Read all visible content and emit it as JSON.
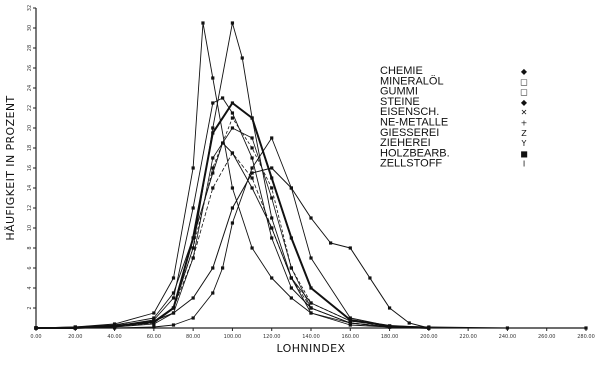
{
  "chart_data": {
    "type": "line",
    "xlabel": "LOHNINDEX",
    "ylabel": "HÄUFIGKEIT IN PROZENT",
    "xlim": [
      0,
      280
    ],
    "ylim": [
      0,
      32
    ],
    "x_ticks": [
      "0.00",
      "20.00",
      "40.00",
      "60.00",
      "80.00",
      "100.00",
      "120.00",
      "140.00",
      "160.00",
      "180.00",
      "200.00",
      "220.00",
      "240.00",
      "260.00",
      "280.00"
    ],
    "y_ticks": [
      "2",
      "4",
      "6",
      "8",
      "10",
      "12",
      "14",
      "16",
      "18",
      "20",
      "22",
      "24",
      "26",
      "28",
      "30",
      "32"
    ],
    "legend_position": "top-right",
    "series": [
      {
        "name": "CHEMIE",
        "marker": "◆",
        "x": [
          0,
          20,
          40,
          60,
          70,
          80,
          90,
          95,
          100,
          110,
          120,
          130,
          140,
          160,
          180,
          200,
          240,
          280
        ],
        "y": [
          0,
          0.1,
          0.3,
          1,
          3.5,
          9,
          15.5,
          18.5,
          17.5,
          14,
          10,
          5,
          2.5,
          0.7,
          0.2,
          0.1,
          0,
          0
        ]
      },
      {
        "name": "MINERALÖL",
        "marker": "□",
        "x": [
          0,
          20,
          40,
          60,
          70,
          80,
          85,
          90,
          100,
          110,
          120,
          130,
          140,
          160,
          180,
          200
        ],
        "y": [
          0,
          0.1,
          0.4,
          1.5,
          5,
          16,
          30.5,
          25,
          14,
          8,
          5,
          3,
          1.5,
          0.5,
          0.1,
          0
        ]
      },
      {
        "name": "GUMMI",
        "marker": "□",
        "x": [
          0,
          20,
          40,
          60,
          70,
          80,
          90,
          100,
          105,
          110,
          120,
          130,
          140,
          160,
          180,
          200
        ],
        "y": [
          0,
          0,
          0.2,
          0.6,
          2,
          8,
          20,
          30.5,
          27,
          21,
          11,
          5,
          1.5,
          0.3,
          0.1,
          0
        ]
      },
      {
        "name": "STEINE",
        "marker": "◆",
        "x": [
          0,
          20,
          40,
          60,
          70,
          80,
          90,
          95,
          100,
          110,
          120,
          130,
          140,
          160,
          180,
          200
        ],
        "y": [
          0,
          0,
          0.2,
          0.8,
          3,
          12,
          22.5,
          23,
          21.5,
          17,
          9,
          4,
          2,
          0.5,
          0.1,
          0
        ]
      },
      {
        "name": "EISENSCH.",
        "marker": "✕",
        "x": [
          0,
          20,
          40,
          60,
          70,
          80,
          90,
          100,
          110,
          120,
          130,
          140,
          160,
          180,
          200
        ],
        "y": [
          0,
          0,
          0.2,
          0.5,
          2,
          8,
          16,
          21,
          18,
          14,
          6,
          2.5,
          0.7,
          0.2,
          0
        ]
      },
      {
        "name": "NE-METALLE",
        "marker": "+",
        "x": [
          0,
          20,
          40,
          60,
          70,
          80,
          90,
          100,
          110,
          120,
          130,
          140,
          160,
          180,
          200
        ],
        "y": [
          0,
          0,
          0.1,
          0.4,
          1.5,
          7,
          17,
          20,
          19,
          13,
          6,
          2,
          0.5,
          0.1,
          0
        ]
      },
      {
        "name": "GIESSEREI",
        "marker": "Z",
        "x": [
          0,
          20,
          40,
          60,
          70,
          80,
          90,
          100,
          110,
          120,
          130,
          140,
          160,
          180,
          200
        ],
        "y": [
          0,
          0,
          0.2,
          0.6,
          2,
          9,
          19.5,
          22.5,
          21,
          15,
          9,
          4,
          0.8,
          0.2,
          0
        ]
      },
      {
        "name": "ZIEHEREI",
        "marker": "Y",
        "x": [
          0,
          20,
          40,
          60,
          70,
          80,
          90,
          100,
          110,
          120,
          130,
          140,
          160,
          180,
          200
        ],
        "y": [
          0,
          0,
          0.1,
          0.5,
          2,
          7,
          14,
          17.5,
          15,
          10,
          5,
          2,
          0.5,
          0.1,
          0
        ]
      },
      {
        "name": "HOLZBEARB.",
        "marker": "■",
        "x": [
          0,
          20,
          40,
          60,
          70,
          80,
          90,
          100,
          110,
          120,
          130,
          140,
          150,
          160,
          170,
          180,
          190,
          200
        ],
        "y": [
          0,
          0,
          0.2,
          0.7,
          1.5,
          3,
          6,
          12,
          15.5,
          16,
          14,
          11,
          8.5,
          8,
          5,
          2,
          0.5,
          0
        ]
      },
      {
        "name": "ZELLSTOFF",
        "marker": "I",
        "x": [
          0,
          20,
          40,
          60,
          70,
          80,
          90,
          95,
          100,
          110,
          120,
          130,
          140,
          160,
          180,
          200
        ],
        "y": [
          0,
          0,
          0,
          0.1,
          0.3,
          1,
          3.5,
          6,
          10.5,
          16,
          19,
          14,
          7,
          1,
          0.2,
          0
        ]
      }
    ]
  }
}
